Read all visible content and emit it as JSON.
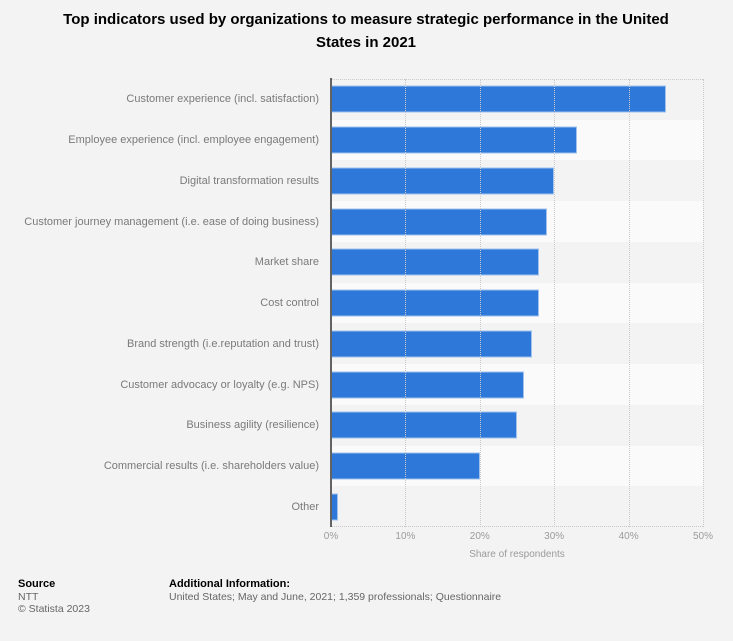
{
  "title": "Top indicators used by organizations to measure strategic performance in the United States in 2021",
  "chart_data": {
    "type": "bar",
    "orientation": "horizontal",
    "title": "Top indicators used by organizations to measure strategic performance in the United States in 2021",
    "categories": [
      "Customer experience (incl. satisfaction)",
      "Employee experience (incl. employee engagement)",
      "Digital transformation results",
      "Customer journey management (i.e. ease of doing business)",
      "Market share",
      "Cost control",
      "Brand strength (i.e.reputation and trust)",
      "Customer advocacy or loyalty (e.g. NPS)",
      "Business agility (resilience)",
      "Commercial results (i.e. shareholders value)",
      "Other"
    ],
    "values": [
      45,
      33,
      30,
      29,
      28,
      28,
      27,
      26,
      25,
      20,
      1
    ],
    "unit": "%",
    "xlabel": "Share of respondents",
    "ylabel": "",
    "xlim": [
      0,
      50
    ],
    "x_ticks": [
      "0%",
      "10%",
      "20%",
      "30%",
      "40%",
      "50%"
    ],
    "grid": "vertical dotted",
    "legend": "none",
    "bar_color": "#2d78d8",
    "band_color_light": "#fafafa",
    "band_color_dark": "#f3f3f3"
  },
  "footer": {
    "source_label": "Source",
    "source": "NTT",
    "copyright": "© Statista 2023",
    "additional_info_label": "Additional Information:",
    "additional_info": "United States; May and June, 2021; 1,359 professionals; Questionnaire"
  }
}
